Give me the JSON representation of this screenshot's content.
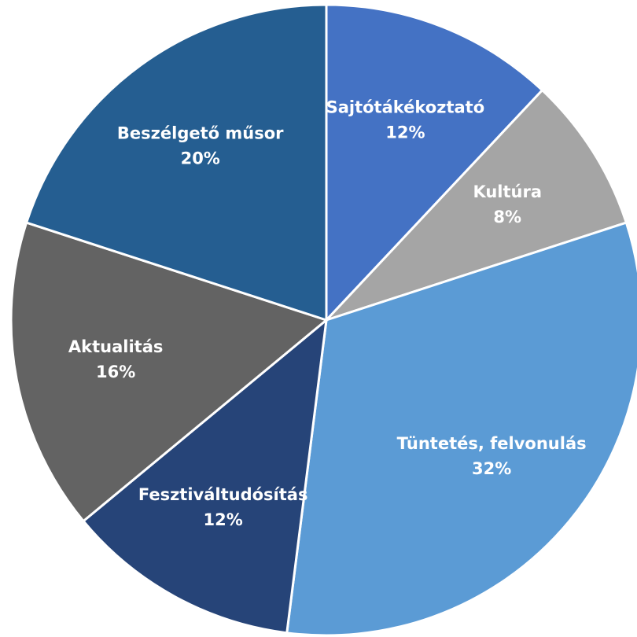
{
  "chart_data": {
    "type": "pie",
    "categories": [
      "Sajtótákékoztató",
      "Kultúra",
      "Tüntetés, felvonulás",
      "Fesztiváltudósítás",
      "Aktualitás",
      "Beszélgető műsor"
    ],
    "values": [
      12,
      8,
      32,
      12,
      16,
      20
    ],
    "value_labels": [
      "12%",
      "8%",
      "32%",
      "12%",
      "16%",
      "20%"
    ],
    "colors": [
      "#4472c4",
      "#a5a5a5",
      "#5b9bd5",
      "#264478",
      "#636363",
      "#255e91"
    ]
  }
}
